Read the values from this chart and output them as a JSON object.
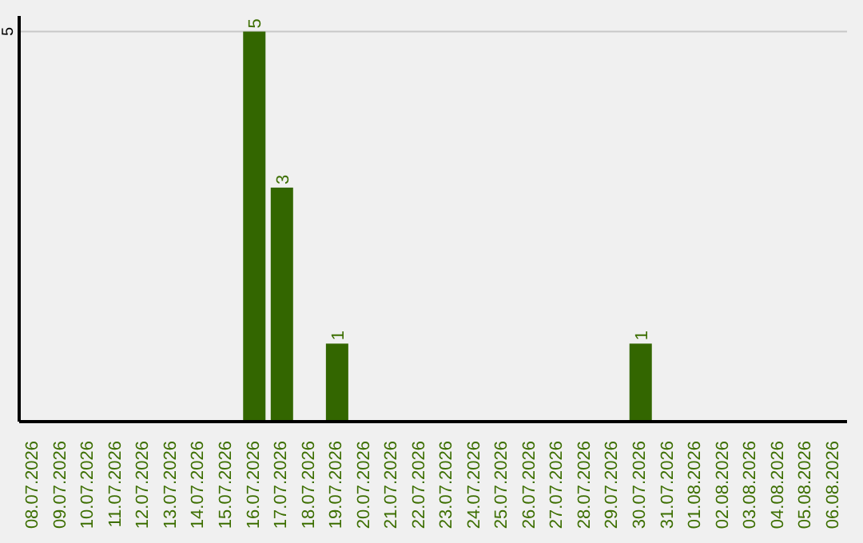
{
  "chart_data": {
    "type": "bar",
    "categories": [
      "08.07.2026",
      "09.07.2026",
      "10.07.2026",
      "11.07.2026",
      "12.07.2026",
      "13.07.2026",
      "14.07.2026",
      "15.07.2026",
      "16.07.2026",
      "17.07.2026",
      "18.07.2026",
      "19.07.2026",
      "20.07.2026",
      "21.07.2026",
      "22.07.2026",
      "23.07.2026",
      "24.07.2026",
      "25.07.2026",
      "26.07.2026",
      "27.07.2026",
      "28.07.2026",
      "29.07.2026",
      "30.07.2026",
      "31.07.2026",
      "01.08.2026",
      "02.08.2026",
      "03.08.2026",
      "04.08.2026",
      "05.08.2026",
      "06.08.2026"
    ],
    "values": [
      0,
      0,
      0,
      0,
      0,
      0,
      0,
      0,
      5,
      3,
      0,
      1,
      0,
      0,
      0,
      0,
      0,
      0,
      0,
      0,
      0,
      0,
      1,
      0,
      0,
      0,
      0,
      0,
      0,
      0
    ],
    "value_labels": [
      null,
      null,
      null,
      null,
      null,
      null,
      null,
      null,
      "5",
      "3",
      null,
      "1",
      null,
      null,
      null,
      null,
      null,
      null,
      null,
      null,
      null,
      null,
      "1",
      null,
      null,
      null,
      null,
      null,
      null,
      null
    ],
    "color": "#336600",
    "ylim": [
      0,
      5.2
    ],
    "yticks": [
      5
    ],
    "grid": "y",
    "legend": false
  }
}
